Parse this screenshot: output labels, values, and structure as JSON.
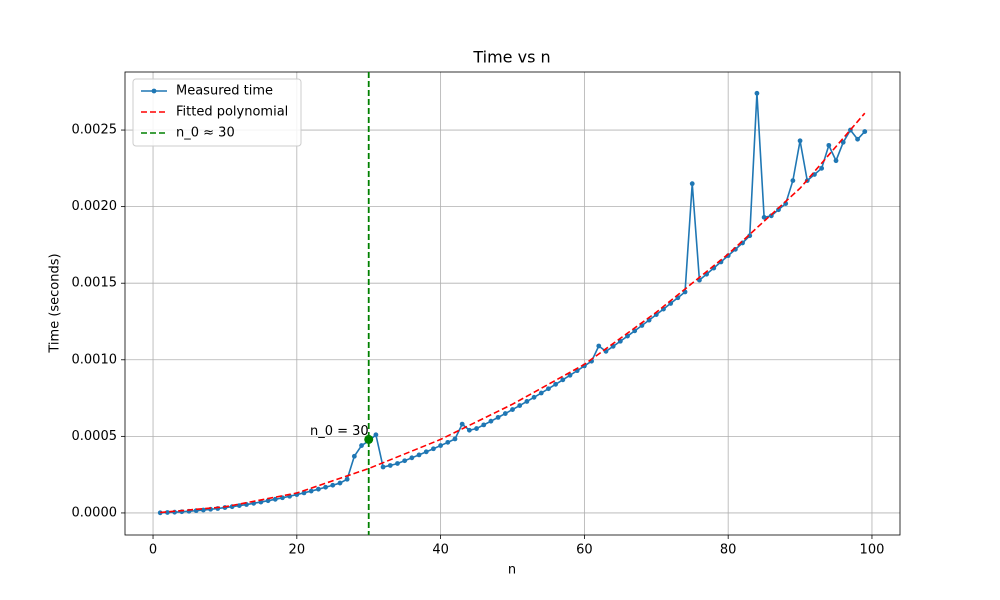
{
  "chart_data": {
    "type": "line",
    "title": "Time vs n",
    "xlabel": "n",
    "ylabel": "Time (seconds)",
    "x": [
      1,
      2,
      3,
      4,
      5,
      6,
      7,
      8,
      9,
      10,
      11,
      12,
      13,
      14,
      15,
      16,
      17,
      18,
      19,
      20,
      21,
      22,
      23,
      24,
      25,
      26,
      27,
      28,
      29,
      30,
      31,
      32,
      33,
      34,
      35,
      36,
      37,
      38,
      39,
      40,
      41,
      42,
      43,
      44,
      45,
      46,
      47,
      48,
      49,
      50,
      51,
      52,
      53,
      54,
      55,
      56,
      57,
      58,
      59,
      60,
      61,
      62,
      63,
      64,
      65,
      66,
      67,
      68,
      69,
      70,
      71,
      72,
      73,
      74,
      75,
      76,
      77,
      78,
      79,
      80,
      81,
      82,
      83,
      84,
      85,
      86,
      87,
      88,
      89,
      90,
      91,
      92,
      93,
      94,
      95,
      96,
      97,
      98,
      99
    ],
    "series": [
      {
        "name": "Measured time",
        "color": "#1f77b4",
        "values": [
          1e-06,
          3e-06,
          5e-06,
          8e-06,
          1.1e-05,
          1.5e-05,
          1.9e-05,
          2.4e-05,
          2.9e-05,
          3.5e-05,
          4.1e-05,
          4.8e-05,
          5.5e-05,
          6.3e-05,
          7.1e-05,
          8e-05,
          8.9e-05,
          9.9e-05,
          0.000109,
          0.00012,
          0.000131,
          0.000143,
          0.000155,
          0.000168,
          0.000181,
          0.000195,
          0.00022,
          0.00037,
          0.00044,
          0.00047,
          0.00051,
          0.0003,
          0.00031,
          0.000323,
          0.000341,
          0.00036,
          0.000379,
          0.000399,
          0.000419,
          0.00044,
          0.000461,
          0.000483,
          0.00058,
          0.00054,
          0.000551,
          0.000575,
          0.000599,
          0.000624,
          0.000649,
          0.000675,
          0.000701,
          0.000728,
          0.000755,
          0.000783,
          0.000811,
          0.00084,
          0.000869,
          0.000899,
          0.000929,
          0.00096,
          0.000991,
          0.00109,
          0.001055,
          0.001088,
          0.001121,
          0.001155,
          0.001189,
          0.001224,
          0.001259,
          0.001295,
          0.001331,
          0.001368,
          0.001405,
          0.001443,
          0.00215,
          0.00152,
          0.001559,
          0.001599,
          0.001639,
          0.00168,
          0.001721,
          0.001763,
          0.00181,
          0.00274,
          0.00193,
          0.00194,
          0.00198,
          0.00202,
          0.00217,
          0.00243,
          0.00217,
          0.00221,
          0.00225,
          0.0024,
          0.0023,
          0.00242,
          0.0025,
          0.00244,
          0.00249
        ]
      },
      {
        "name": "Fitted polynomial",
        "color": "#ff0000",
        "dashed": true,
        "x": [
          1,
          10,
          20,
          30,
          40,
          50,
          60,
          70,
          80,
          90,
          99
        ],
        "values": [
          3e-06,
          4e-05,
          0.00013,
          0.00029,
          0.00048,
          0.00071,
          0.00097,
          0.00131,
          0.00169,
          0.00212,
          0.00261
        ]
      }
    ],
    "vline": {
      "name": "n_0 ≈ 30",
      "x": 30,
      "color": "#008000"
    },
    "annotation": {
      "text": "n_0 = 30",
      "x": 30,
      "y": 0.00048,
      "color": "#008000"
    },
    "xlim": [
      -3.9,
      103.9
    ],
    "xticks": [
      0,
      20,
      40,
      60,
      80,
      100
    ],
    "ylim": [
      -0.000144,
      0.002879
    ],
    "yticks": [
      {
        "value": 0,
        "label": "0.0000"
      },
      {
        "value": 0.0005,
        "label": "0.0005"
      },
      {
        "value": 0.001,
        "label": "0.0010"
      },
      {
        "value": 0.0015,
        "label": "0.0015"
      },
      {
        "value": 0.002,
        "label": "0.0020"
      },
      {
        "value": 0.0025,
        "label": "0.0025"
      }
    ],
    "grid": true,
    "legend": "upper left"
  }
}
